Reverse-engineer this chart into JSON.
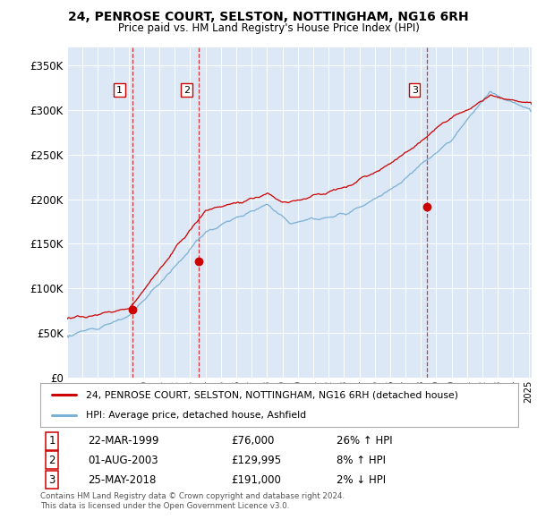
{
  "title": "24, PENROSE COURT, SELSTON, NOTTINGHAM, NG16 6RH",
  "subtitle": "Price paid vs. HM Land Registry's House Price Index (HPI)",
  "ylabel_ticks": [
    "£0",
    "£50K",
    "£100K",
    "£150K",
    "£200K",
    "£250K",
    "£300K",
    "£350K"
  ],
  "ytick_values": [
    0,
    50000,
    100000,
    150000,
    200000,
    250000,
    300000,
    350000
  ],
  "ylim": [
    0,
    370000
  ],
  "xlim_start": 1995.3,
  "xlim_end": 2025.2,
  "sale_color": "#cc0000",
  "hpi_color": "#7ab0d4",
  "vline_color": "#cc0000",
  "sales": [
    {
      "date_num": 1999.22,
      "price": 76000,
      "label": "1"
    },
    {
      "date_num": 2003.58,
      "price": 129995,
      "label": "2"
    },
    {
      "date_num": 2018.39,
      "price": 191000,
      "label": "3"
    }
  ],
  "legend_sale_label": "24, PENROSE COURT, SELSTON, NOTTINGHAM, NG16 6RH (detached house)",
  "legend_hpi_label": "HPI: Average price, detached house, Ashfield",
  "table_rows": [
    {
      "num": "1",
      "date": "22-MAR-1999",
      "price": "£76,000",
      "change": "26% ↑ HPI"
    },
    {
      "num": "2",
      "date": "01-AUG-2003",
      "price": "£129,995",
      "change": "8% ↑ HPI"
    },
    {
      "num": "3",
      "date": "25-MAY-2018",
      "price": "£191,000",
      "change": "2% ↓ HPI"
    }
  ],
  "footer": "Contains HM Land Registry data © Crown copyright and database right 2024.\nThis data is licensed under the Open Government Licence v3.0.",
  "background_color": "#ffffff",
  "plot_bg_color": "#dce8f5"
}
